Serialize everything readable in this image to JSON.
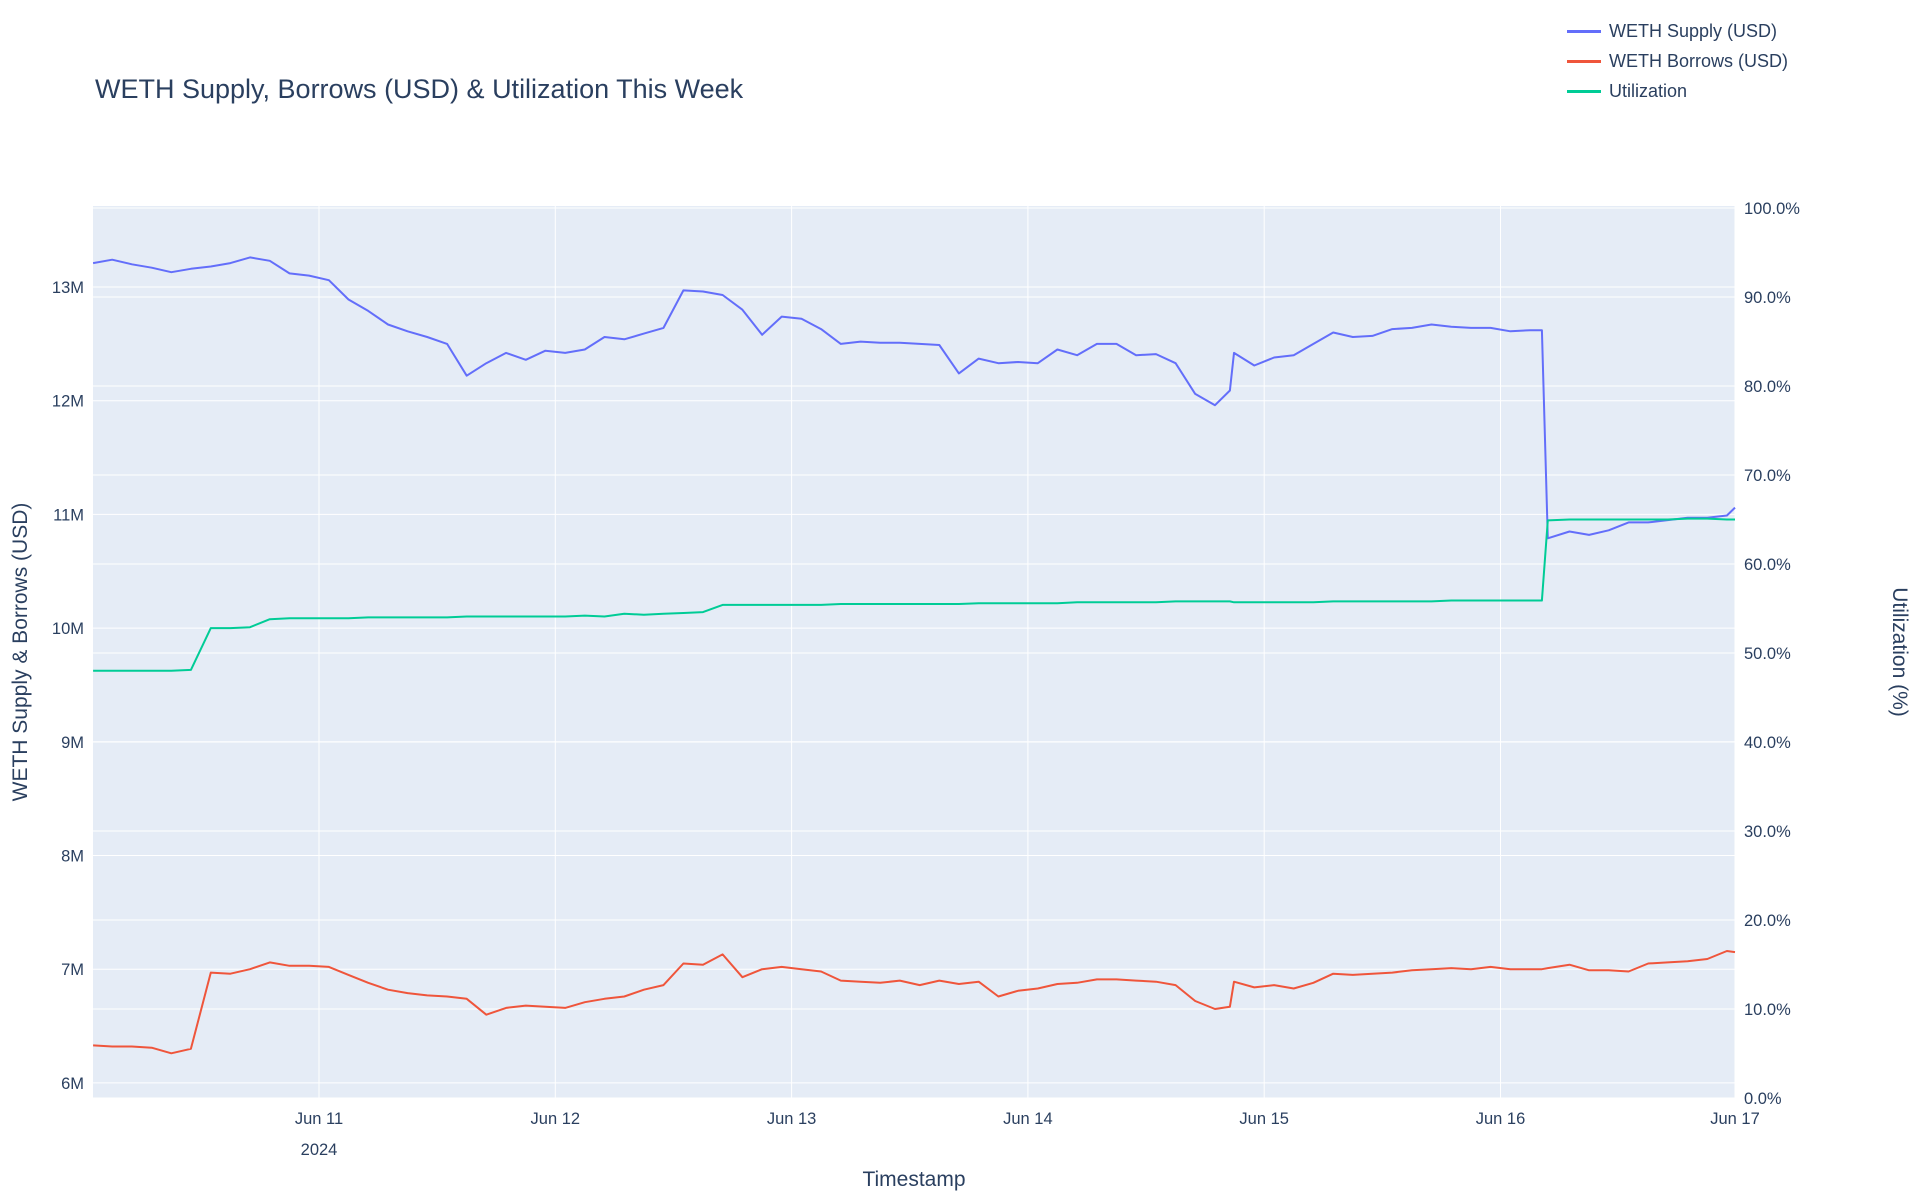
{
  "chart_data": {
    "type": "line",
    "title": "WETH Supply, Borrows (USD) & Utilization This Week",
    "xlabel": "Timestamp",
    "ylabel_left": "WETH Supply & Borrows (USD)",
    "ylabel_right": "Utilization (%)",
    "plot_bg_color": "#E5ECF6",
    "grid_color": "#ffffff",
    "text_color": "#2a3f5f",
    "legend_position": "top-right",
    "x_unit": "days_from_2024-06-10T00:00",
    "x_ticks": [
      {
        "t": 1,
        "label": "Jun 11",
        "sub": "2024"
      },
      {
        "t": 2,
        "label": "Jun 12",
        "sub": ""
      },
      {
        "t": 3,
        "label": "Jun 13",
        "sub": ""
      },
      {
        "t": 4,
        "label": "Jun 14",
        "sub": ""
      },
      {
        "t": 5,
        "label": "Jun 15",
        "sub": ""
      },
      {
        "t": 6,
        "label": "Jun 16",
        "sub": ""
      },
      {
        "t": 7,
        "label": "Jun 17",
        "sub": ""
      }
    ],
    "y_left": {
      "ticks": [
        6,
        7,
        8,
        9,
        10,
        11,
        12,
        13
      ],
      "tick_labels": [
        "6M",
        "7M",
        "8M",
        "9M",
        "10M",
        "11M",
        "12M",
        "13M"
      ],
      "unit": "M USD"
    },
    "y_right": {
      "ticks": [
        0,
        10,
        20,
        30,
        40,
        50,
        60,
        70,
        80,
        90,
        100
      ],
      "tick_labels": [
        "0.0%",
        "10.0%",
        "20.0%",
        "30.0%",
        "40.0%",
        "50.0%",
        "60.0%",
        "70.0%",
        "80.0%",
        "90.0%",
        "100.0%"
      ],
      "unit": "%"
    },
    "x": [
      0.044,
      0.125,
      0.208,
      0.292,
      0.375,
      0.458,
      0.542,
      0.625,
      0.708,
      0.792,
      0.875,
      0.958,
      1.042,
      1.125,
      1.208,
      1.292,
      1.375,
      1.458,
      1.542,
      1.625,
      1.708,
      1.792,
      1.875,
      1.958,
      2.042,
      2.125,
      2.208,
      2.292,
      2.375,
      2.458,
      2.542,
      2.625,
      2.708,
      2.792,
      2.875,
      2.958,
      3.042,
      3.125,
      3.208,
      3.292,
      3.375,
      3.458,
      3.542,
      3.625,
      3.708,
      3.792,
      3.875,
      3.958,
      4.042,
      4.125,
      4.208,
      4.292,
      4.375,
      4.458,
      4.542,
      4.625,
      4.708,
      4.792,
      4.855,
      4.872,
      4.958,
      5.042,
      5.125,
      5.208,
      5.292,
      5.375,
      5.458,
      5.542,
      5.625,
      5.708,
      5.792,
      5.875,
      5.958,
      6.042,
      6.125,
      6.175,
      6.2,
      6.292,
      6.375,
      6.458,
      6.542,
      6.625,
      6.708,
      6.792,
      6.875,
      6.958,
      6.997
    ],
    "series": [
      {
        "name": "WETH Supply (USD)",
        "color": "#636EFA",
        "axis": "left",
        "unit": "M",
        "values": [
          13.21,
          13.24,
          13.2,
          13.17,
          13.13,
          13.16,
          13.18,
          13.21,
          13.26,
          13.23,
          13.12,
          13.1,
          13.06,
          12.89,
          12.79,
          12.67,
          12.61,
          12.56,
          12.5,
          12.22,
          12.33,
          12.42,
          12.36,
          12.44,
          12.42,
          12.45,
          12.56,
          12.54,
          12.59,
          12.64,
          12.97,
          12.96,
          12.93,
          12.8,
          12.58,
          12.74,
          12.72,
          12.63,
          12.5,
          12.52,
          12.51,
          12.51,
          12.5,
          12.49,
          12.24,
          12.37,
          12.33,
          12.34,
          12.33,
          12.45,
          12.4,
          12.5,
          12.5,
          12.4,
          12.41,
          12.33,
          12.06,
          11.96,
          12.09,
          12.42,
          12.31,
          12.38,
          12.4,
          12.5,
          12.6,
          12.56,
          12.57,
          12.63,
          12.64,
          12.67,
          12.65,
          12.64,
          12.64,
          12.61,
          12.62,
          12.62,
          10.79,
          10.85,
          10.82,
          10.86,
          10.93,
          10.93,
          10.95,
          10.97,
          10.97,
          10.99,
          11.06
        ]
      },
      {
        "name": "WETH Borrows (USD)",
        "color": "#EF553B",
        "axis": "left",
        "unit": "M",
        "values": [
          6.33,
          6.32,
          6.32,
          6.31,
          6.26,
          6.3,
          6.97,
          6.96,
          7.0,
          7.06,
          7.03,
          7.03,
          7.02,
          6.95,
          6.88,
          6.82,
          6.79,
          6.77,
          6.76,
          6.74,
          6.6,
          6.66,
          6.68,
          6.67,
          6.66,
          6.71,
          6.74,
          6.76,
          6.82,
          6.86,
          7.05,
          7.04,
          7.13,
          6.93,
          7.0,
          7.02,
          7.0,
          6.98,
          6.9,
          6.89,
          6.88,
          6.9,
          6.86,
          6.9,
          6.87,
          6.89,
          6.76,
          6.81,
          6.83,
          6.87,
          6.88,
          6.91,
          6.91,
          6.9,
          6.89,
          6.86,
          6.72,
          6.65,
          6.67,
          6.89,
          6.84,
          6.86,
          6.83,
          6.88,
          6.96,
          6.95,
          6.96,
          6.97,
          6.99,
          7.0,
          7.01,
          7.0,
          7.02,
          7.0,
          7.0,
          7.0,
          7.01,
          7.04,
          6.99,
          6.99,
          6.98,
          7.05,
          7.06,
          7.07,
          7.09,
          7.16,
          7.15
        ]
      },
      {
        "name": "Utilization",
        "color": "#00CC96",
        "axis": "right",
        "unit": "%",
        "values": [
          48.0,
          48.0,
          48.0,
          48.0,
          48.0,
          48.1,
          52.8,
          52.8,
          52.9,
          53.8,
          53.9,
          53.9,
          53.9,
          53.9,
          54.0,
          54.0,
          54.0,
          54.0,
          54.0,
          54.1,
          54.1,
          54.1,
          54.1,
          54.1,
          54.1,
          54.2,
          54.1,
          54.4,
          54.3,
          54.4,
          54.5,
          54.6,
          55.4,
          55.4,
          55.4,
          55.4,
          55.4,
          55.4,
          55.5,
          55.5,
          55.5,
          55.5,
          55.5,
          55.5,
          55.5,
          55.6,
          55.6,
          55.6,
          55.6,
          55.6,
          55.7,
          55.7,
          55.7,
          55.7,
          55.7,
          55.8,
          55.8,
          55.8,
          55.8,
          55.7,
          55.7,
          55.7,
          55.7,
          55.7,
          55.8,
          55.8,
          55.8,
          55.8,
          55.8,
          55.8,
          55.9,
          55.9,
          55.9,
          55.9,
          55.9,
          55.9,
          64.9,
          65.0,
          65.0,
          65.0,
          65.0,
          65.0,
          65.0,
          65.1,
          65.1,
          65.0,
          65.0
        ]
      }
    ]
  }
}
